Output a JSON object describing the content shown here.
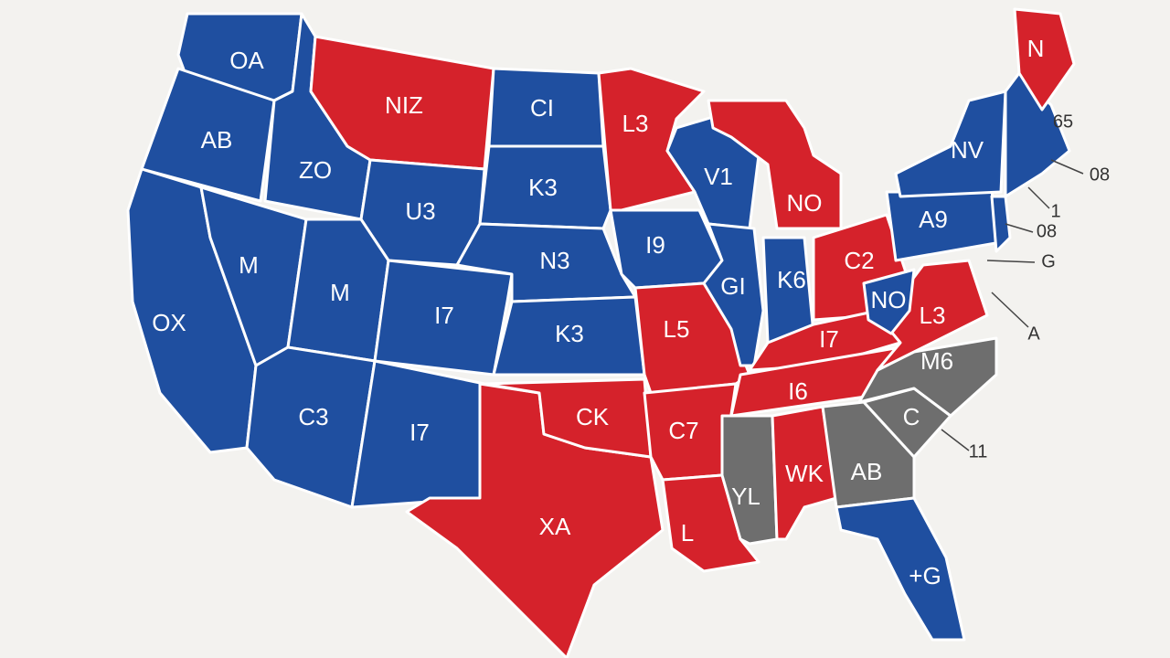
{
  "map": {
    "labels": [
      "OA",
      "AB",
      "ZO",
      "M",
      "OX",
      "NIZ",
      "CI",
      "L3",
      "K3",
      "U3",
      "N3",
      "M",
      "I7",
      "K3",
      "C3",
      "I7",
      "CK",
      "XA",
      "I9",
      "L5",
      "C7",
      "L",
      "V1",
      "NO",
      "GI",
      "K6",
      "C2",
      "NO",
      "I7",
      "I6",
      "L3",
      "M6",
      "C",
      "YL",
      "WK",
      "AB",
      "+G",
      "NV",
      "A9",
      "N",
      "65",
      "08",
      "1",
      "08",
      "G",
      "A",
      "11"
    ]
  }
}
